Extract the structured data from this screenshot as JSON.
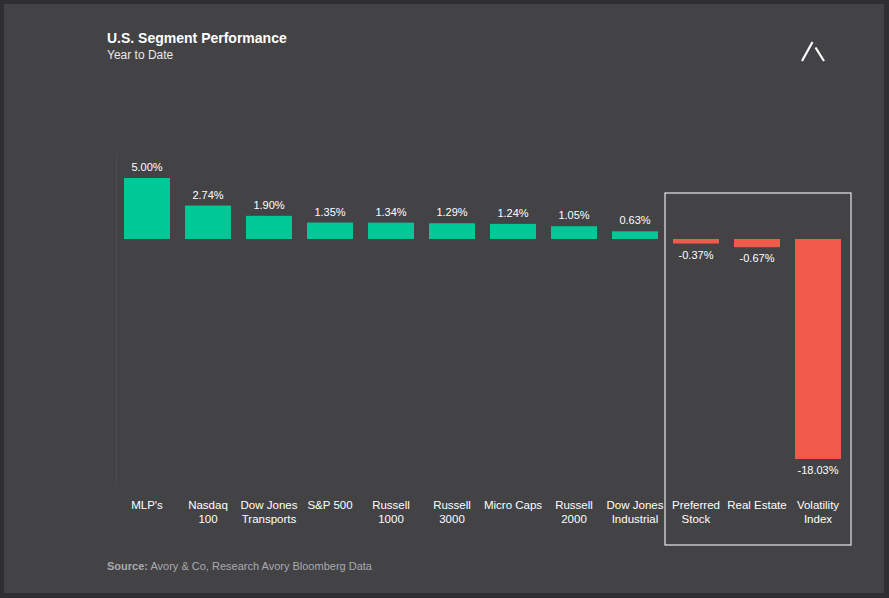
{
  "chart_data": {
    "type": "bar",
    "title": "U.S. Segment Performance",
    "subtitle": "Year to Date",
    "categories": [
      "MLP's",
      "Nasdaq 100",
      "Dow Jones Transports",
      "S&P 500",
      "Russell 1000",
      "Russell 3000",
      "Micro Caps",
      "Russell 2000",
      "Dow Jones Industrial",
      "Preferred Stock",
      "Real Estate",
      "Volatility Index"
    ],
    "values": [
      5.0,
      2.74,
      1.9,
      1.35,
      1.34,
      1.29,
      1.24,
      1.05,
      0.63,
      -0.37,
      -0.67,
      -18.03
    ],
    "value_labels": [
      "5.00%",
      "2.74%",
      "1.90%",
      "1.35%",
      "1.34%",
      "1.29%",
      "1.24%",
      "1.05%",
      "0.63%",
      "-0.37%",
      "-0.67%",
      "-18.03%"
    ],
    "colors": [
      "#00c896",
      "#00c896",
      "#00c896",
      "#00c896",
      "#00c896",
      "#00c896",
      "#00c896",
      "#00c896",
      "#00c896",
      "#f05a4a",
      "#f05a4a",
      "#f05a4a"
    ],
    "ylim": [
      -20,
      7
    ],
    "grid": false,
    "data_labels": true,
    "tick_labels": "x",
    "source": "Source: Avory & Co, Research Avory Bloomberg Data"
  }
}
